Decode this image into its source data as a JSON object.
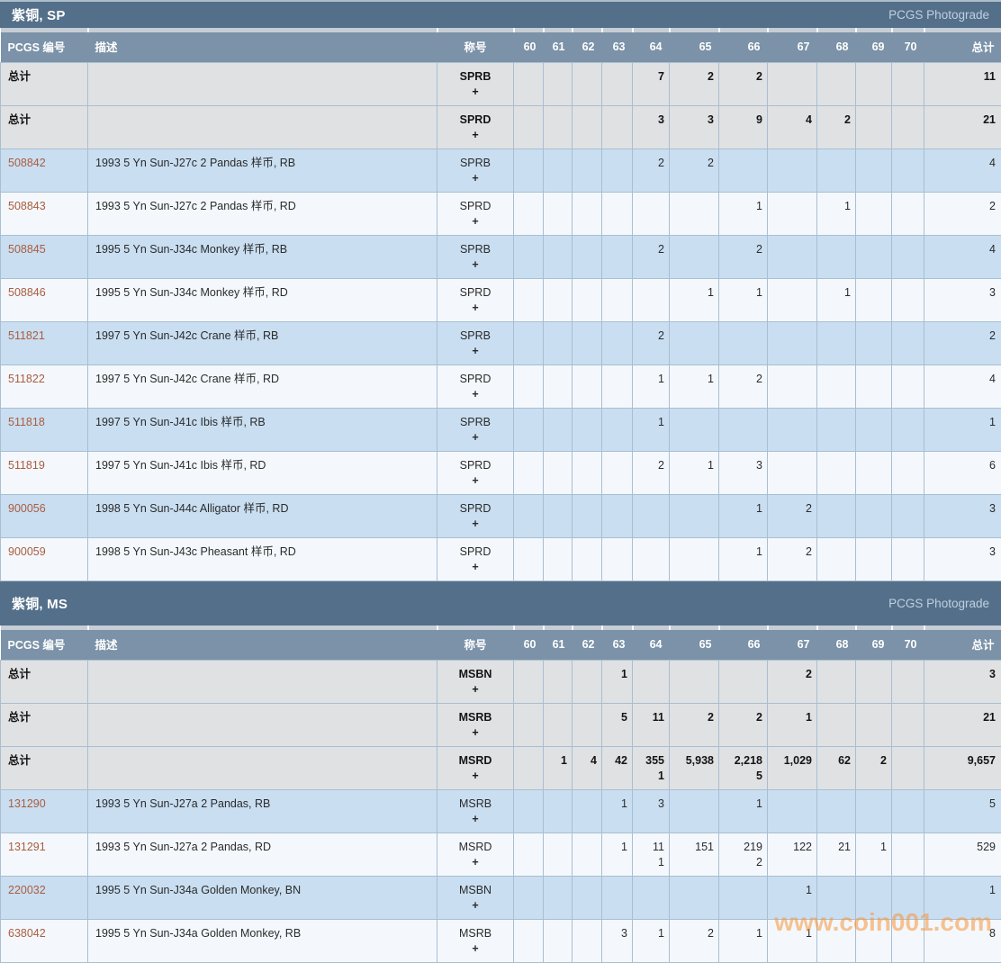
{
  "plus_suffix": "+",
  "watermark": "www.coin001.com",
  "column_headers": {
    "id": "PCGS 编号",
    "description": "描述",
    "designation": "称号",
    "total": "总计"
  },
  "grade_columns": [
    "60",
    "61",
    "62",
    "63",
    "64",
    "65",
    "66",
    "67",
    "68",
    "69",
    "70"
  ],
  "sections": [
    {
      "title": "紫铜, SP",
      "brand": "PCGS Photograde",
      "rows": [
        {
          "row_type": "total",
          "id": "总计",
          "description": "",
          "designation": "SPRB",
          "cells": [
            "",
            "",
            "",
            "",
            "7",
            "2",
            "2",
            "",
            "",
            "",
            ""
          ],
          "total": "11"
        },
        {
          "row_type": "total",
          "id": "总计",
          "description": "",
          "designation": "SPRD",
          "cells": [
            "",
            "",
            "",
            "",
            "3",
            "3",
            "9",
            "4",
            "2",
            "",
            ""
          ],
          "total": "21"
        },
        {
          "row_type": "data",
          "id": "508842",
          "description": "1993 5 Yn Sun-J27c 2 Pandas 样币, RB",
          "designation": "SPRB",
          "cells": [
            "",
            "",
            "",
            "",
            "2",
            "2",
            "",
            "",
            "",
            "",
            ""
          ],
          "total": "4"
        },
        {
          "row_type": "data",
          "id": "508843",
          "description": "1993 5 Yn Sun-J27c 2 Pandas 样币, RD",
          "designation": "SPRD",
          "cells": [
            "",
            "",
            "",
            "",
            "",
            "",
            "1",
            "",
            "1",
            "",
            ""
          ],
          "total": "2"
        },
        {
          "row_type": "data",
          "id": "508845",
          "description": "1995 5 Yn Sun-J34c Monkey 样币, RB",
          "designation": "SPRB",
          "cells": [
            "",
            "",
            "",
            "",
            "2",
            "",
            "2",
            "",
            "",
            "",
            ""
          ],
          "total": "4"
        },
        {
          "row_type": "data",
          "id": "508846",
          "description": "1995 5 Yn Sun-J34c Monkey 样币, RD",
          "designation": "SPRD",
          "cells": [
            "",
            "",
            "",
            "",
            "",
            "1",
            "1",
            "",
            "1",
            "",
            ""
          ],
          "total": "3"
        },
        {
          "row_type": "data",
          "id": "511821",
          "description": "1997 5 Yn Sun-J42c Crane 样币, RB",
          "designation": "SPRB",
          "cells": [
            "",
            "",
            "",
            "",
            "2",
            "",
            "",
            "",
            "",
            "",
            ""
          ],
          "total": "2"
        },
        {
          "row_type": "data",
          "id": "511822",
          "description": "1997 5 Yn Sun-J42c Crane 样币, RD",
          "designation": "SPRD",
          "cells": [
            "",
            "",
            "",
            "",
            "1",
            "1",
            "2",
            "",
            "",
            "",
            ""
          ],
          "total": "4"
        },
        {
          "row_type": "data",
          "id": "511818",
          "description": "1997 5 Yn Sun-J41c Ibis 样币, RB",
          "designation": "SPRB",
          "cells": [
            "",
            "",
            "",
            "",
            "1",
            "",
            "",
            "",
            "",
            "",
            ""
          ],
          "total": "1"
        },
        {
          "row_type": "data",
          "id": "511819",
          "description": "1997 5 Yn Sun-J41c Ibis 样币, RD",
          "designation": "SPRD",
          "cells": [
            "",
            "",
            "",
            "",
            "2",
            "1",
            "3",
            "",
            "",
            "",
            ""
          ],
          "total": "6"
        },
        {
          "row_type": "data",
          "id": "900056",
          "description": "1998 5 Yn Sun-J44c Alligator 样币, RD",
          "designation": "SPRD",
          "cells": [
            "",
            "",
            "",
            "",
            "",
            "",
            "1",
            "2",
            "",
            "",
            ""
          ],
          "total": "3"
        },
        {
          "row_type": "data",
          "id": "900059",
          "description": "1998 5 Yn Sun-J43c Pheasant 样币, RD",
          "designation": "SPRD",
          "cells": [
            "",
            "",
            "",
            "",
            "",
            "",
            "1",
            "2",
            "",
            "",
            ""
          ],
          "total": "3"
        }
      ]
    },
    {
      "title": "紫铜, MS",
      "brand": "PCGS Photograde",
      "rows": [
        {
          "row_type": "total",
          "id": "总计",
          "description": "",
          "designation": "MSBN",
          "cells": [
            "",
            "",
            "",
            "1",
            "",
            "",
            "",
            "2",
            "",
            "",
            ""
          ],
          "total": "3"
        },
        {
          "row_type": "total",
          "id": "总计",
          "description": "",
          "designation": "MSRB",
          "cells": [
            "",
            "",
            "",
            "5",
            "11",
            "2",
            "2",
            "1",
            "",
            "",
            ""
          ],
          "total": "21"
        },
        {
          "row_type": "total",
          "id": "总计",
          "description": "",
          "designation": "MSRD",
          "cells": [
            "",
            "1",
            "4",
            "42",
            [
              "355",
              "1"
            ],
            "5,938",
            [
              "2,218",
              "5"
            ],
            "1,029",
            "62",
            "2",
            ""
          ],
          "total": "9,657"
        },
        {
          "row_type": "data",
          "id": "131290",
          "description": "1993 5 Yn Sun-J27a 2 Pandas, RB",
          "designation": "MSRB",
          "cells": [
            "",
            "",
            "",
            "1",
            "3",
            "",
            "1",
            "",
            "",
            "",
            ""
          ],
          "total": "5"
        },
        {
          "row_type": "data",
          "id": "131291",
          "description": "1993 5 Yn Sun-J27a 2 Pandas, RD",
          "designation": "MSRD",
          "cells": [
            "",
            "",
            "",
            "1",
            [
              "11",
              "1"
            ],
            "151",
            [
              "219",
              "2"
            ],
            "122",
            "21",
            "1",
            ""
          ],
          "total": "529"
        },
        {
          "row_type": "data",
          "id": "220032",
          "description": "1995 5 Yn Sun-J34a Golden Monkey, BN",
          "designation": "MSBN",
          "cells": [
            "",
            "",
            "",
            "",
            "",
            "",
            "",
            "1",
            "",
            "",
            ""
          ],
          "total": "1"
        },
        {
          "row_type": "data",
          "id": "638042",
          "description": "1995 5 Yn Sun-J34a Golden Monkey, RB",
          "designation": "MSRB",
          "cells": [
            "",
            "",
            "",
            "3",
            "1",
            "2",
            "1",
            "1",
            "",
            "",
            ""
          ],
          "total": "8"
        }
      ]
    }
  ]
}
